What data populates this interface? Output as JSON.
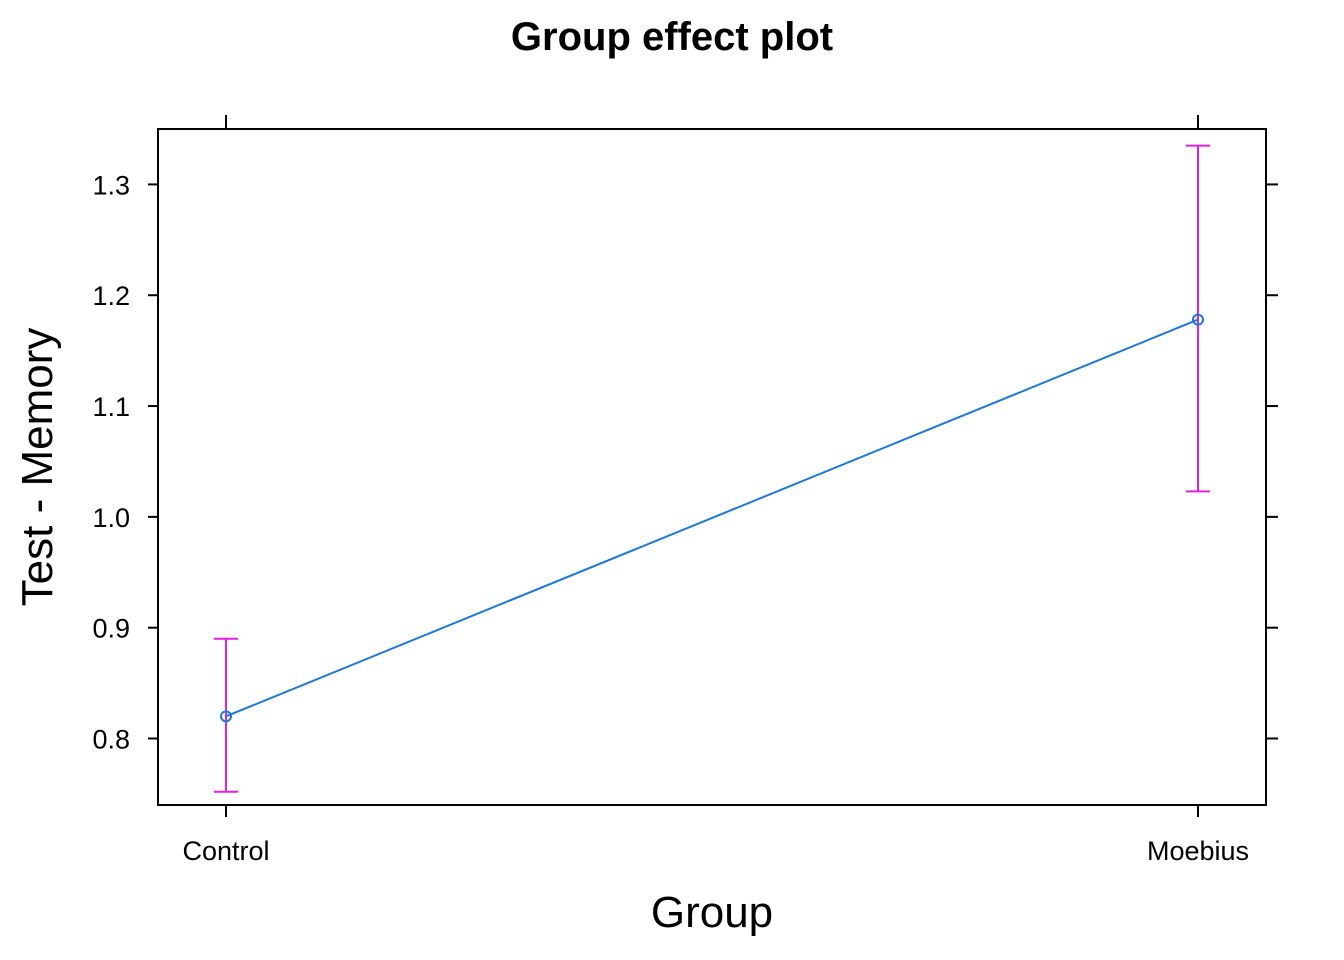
{
  "chart_data": {
    "type": "line",
    "title": "Group effect plot",
    "xlabel": "Group",
    "ylabel": "Test - Memory",
    "categories": [
      "Control",
      "Moebius"
    ],
    "series": [
      {
        "values": [
          0.82,
          1.178
        ],
        "lower": [
          0.752,
          1.023
        ],
        "upper": [
          0.89,
          1.335
        ]
      }
    ],
    "yticks": [
      0.8,
      0.9,
      1.0,
      1.1,
      1.2,
      1.3
    ],
    "ytick_labels": [
      "0.8",
      "0.9",
      "1.0",
      "1.1",
      "1.2",
      "1.3"
    ],
    "ylim": [
      0.74,
      1.35
    ],
    "grid": false,
    "legend": "none",
    "colors": {
      "line": "#1f78d4",
      "errorbar": "#e020e0",
      "axis": "#000000"
    }
  }
}
